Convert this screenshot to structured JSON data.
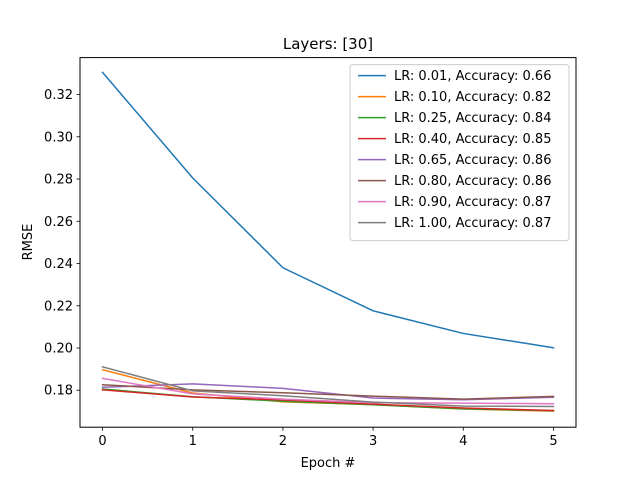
{
  "chart_data": {
    "type": "line",
    "title": "Layers: [30]",
    "xlabel": "Epoch #",
    "ylabel": "RMSE",
    "x": [
      0,
      1,
      2,
      3,
      4,
      5
    ],
    "xlim": [
      -0.25,
      5.25
    ],
    "ylim": [
      0.1625,
      0.3375
    ],
    "xticks": [
      0,
      1,
      2,
      3,
      4,
      5
    ],
    "yticks": [
      0.18,
      0.2,
      0.22,
      0.24,
      0.26,
      0.28,
      0.3,
      0.32
    ],
    "ytick_labels": [
      "0.18",
      "0.20",
      "0.22",
      "0.24",
      "0.26",
      "0.28",
      "0.30",
      "0.32"
    ],
    "grid": false,
    "legend_position": "top-right",
    "series": [
      {
        "name": "LR: 0.01, Accuracy: 0.66",
        "color": "#1f77b4",
        "values": [
          0.3305,
          0.2805,
          0.238,
          0.2176,
          0.2069,
          0.2001
        ]
      },
      {
        "name": "LR: 0.10, Accuracy: 0.82",
        "color": "#ff7f0e",
        "values": [
          0.1897,
          0.1787,
          0.1745,
          0.1732,
          0.1711,
          0.1701
        ]
      },
      {
        "name": "LR: 0.25, Accuracy: 0.84",
        "color": "#2ca02c",
        "values": [
          0.1806,
          0.1769,
          0.1748,
          0.1731,
          0.1712,
          0.1703
        ]
      },
      {
        "name": "LR: 0.40, Accuracy: 0.85",
        "color": "#d62728",
        "values": [
          0.1802,
          0.1768,
          0.1754,
          0.1734,
          0.1716,
          0.1704
        ]
      },
      {
        "name": "LR: 0.65, Accuracy: 0.86",
        "color": "#9467bd",
        "values": [
          0.1814,
          0.183,
          0.1809,
          0.1763,
          0.1755,
          0.1767
        ]
      },
      {
        "name": "LR: 0.80, Accuracy: 0.86",
        "color": "#8c564b",
        "values": [
          0.1826,
          0.1802,
          0.1788,
          0.1772,
          0.1758,
          0.1771
        ]
      },
      {
        "name": "LR: 0.90, Accuracy: 0.87",
        "color": "#e377c2",
        "values": [
          0.1856,
          0.1783,
          0.1758,
          0.1741,
          0.1739,
          0.1736
        ]
      },
      {
        "name": "LR: 1.00, Accuracy: 0.87",
        "color": "#7f7f7f",
        "values": [
          0.1911,
          0.1797,
          0.1774,
          0.1744,
          0.1725,
          0.1723
        ]
      }
    ]
  }
}
